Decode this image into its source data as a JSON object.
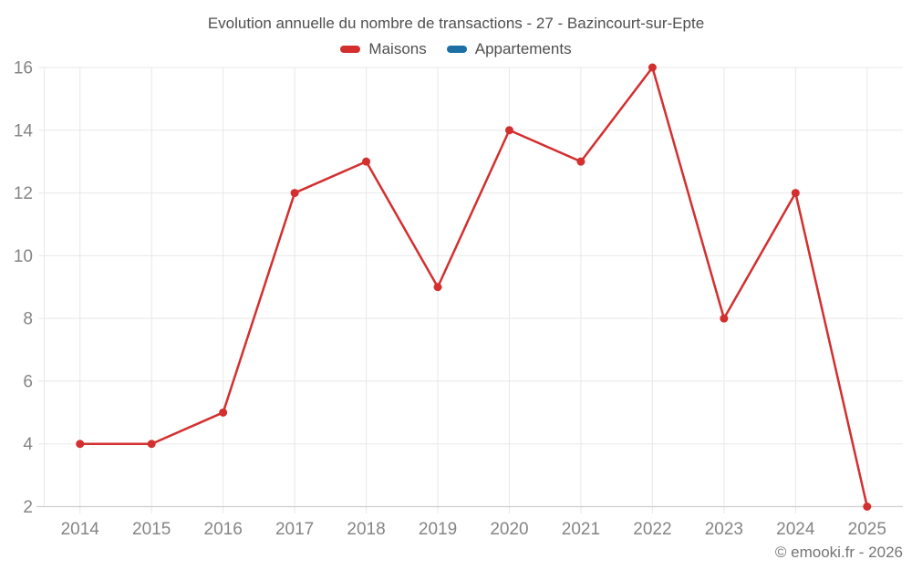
{
  "title": "Evolution annuelle du nombre de transactions - 27 - Bazincourt-sur-Epte",
  "legend": [
    {
      "label": "Maisons",
      "color": "#d32f2f"
    },
    {
      "label": "Appartements",
      "color": "#1c6ea4"
    }
  ],
  "copyright": "© emooki.fr - 2026",
  "chart_data": {
    "type": "line",
    "title": "Evolution annuelle du nombre de transactions - 27 - Bazincourt-sur-Epte",
    "categories": [
      "2014",
      "2015",
      "2016",
      "2017",
      "2018",
      "2019",
      "2020",
      "2021",
      "2022",
      "2023",
      "2024",
      "2025"
    ],
    "series": [
      {
        "name": "Maisons",
        "color": "#d32f2f",
        "values": [
          4,
          4,
          5,
          12,
          13,
          9,
          14,
          13,
          16,
          8,
          12,
          2
        ]
      },
      {
        "name": "Appartements",
        "color": "#1c6ea4",
        "values": []
      }
    ],
    "xlabel": "",
    "ylabel": "",
    "ylim": [
      2,
      16
    ],
    "ytick_step": 2,
    "grid": true,
    "legend_position": "top"
  }
}
